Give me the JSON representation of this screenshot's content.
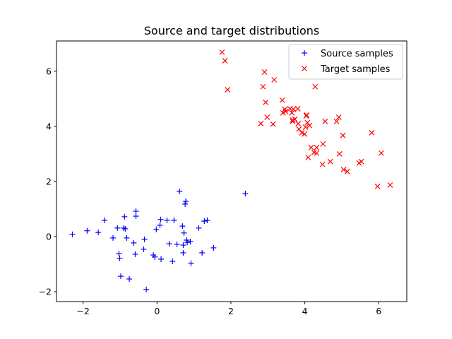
{
  "chart_data": {
    "type": "scatter",
    "title": "Source and target distributions",
    "xlabel": "",
    "ylabel": "",
    "xlim": [
      -2.72,
      6.76
    ],
    "ylim": [
      -2.36,
      7.1
    ],
    "xticks": [
      -2,
      0,
      2,
      4,
      6
    ],
    "yticks": [
      -2,
      0,
      2,
      4,
      6
    ],
    "grid": false,
    "legend_position": "upper right",
    "series": [
      {
        "name": "Source samples",
        "marker": "+",
        "color": "#0000ff",
        "points": [
          [
            -2.29,
            0.08
          ],
          [
            -1.89,
            0.21
          ],
          [
            -1.59,
            0.15
          ],
          [
            -1.42,
            0.59
          ],
          [
            -1.19,
            -0.05
          ],
          [
            -1.07,
            0.31
          ],
          [
            -1.03,
            -0.62
          ],
          [
            -1.01,
            -0.79
          ],
          [
            -0.98,
            -1.44
          ],
          [
            -0.9,
            0.31
          ],
          [
            -0.88,
            0.72
          ],
          [
            -0.86,
            0.28
          ],
          [
            -0.82,
            -0.05
          ],
          [
            -0.75,
            -1.54
          ],
          [
            -0.63,
            -0.23
          ],
          [
            -0.57,
            0.92
          ],
          [
            -0.57,
            0.74
          ],
          [
            -0.59,
            -0.64
          ],
          [
            -0.34,
            -0.1
          ],
          [
            -0.29,
            -1.92
          ],
          [
            -0.36,
            -0.46
          ],
          [
            -0.1,
            -0.67
          ],
          [
            -0.06,
            -0.74
          ],
          [
            -0.02,
            0.26
          ],
          [
            0.08,
            0.41
          ],
          [
            0.1,
            0.62
          ],
          [
            0.11,
            -0.82
          ],
          [
            0.27,
            0.59
          ],
          [
            0.33,
            -0.26
          ],
          [
            0.42,
            -0.9
          ],
          [
            0.46,
            0.59
          ],
          [
            0.54,
            -0.28
          ],
          [
            0.61,
            1.64
          ],
          [
            0.69,
            0.38
          ],
          [
            0.71,
            -0.31
          ],
          [
            0.71,
            -0.59
          ],
          [
            0.73,
            0.13
          ],
          [
            0.76,
            1.18
          ],
          [
            0.78,
            1.28
          ],
          [
            0.8,
            -0.13
          ],
          [
            0.82,
            -0.21
          ],
          [
            0.9,
            -0.18
          ],
          [
            0.92,
            -0.97
          ],
          [
            1.13,
            0.31
          ],
          [
            1.22,
            -0.59
          ],
          [
            1.28,
            0.56
          ],
          [
            1.36,
            0.59
          ],
          [
            1.53,
            -0.41
          ],
          [
            2.39,
            1.56
          ]
        ]
      },
      {
        "name": "Target samples",
        "marker": "x",
        "color": "#ff0000",
        "points": [
          [
            1.76,
            6.69
          ],
          [
            1.84,
            6.38
          ],
          [
            1.91,
            5.33
          ],
          [
            2.91,
            5.97
          ],
          [
            2.87,
            5.44
          ],
          [
            3.17,
            5.69
          ],
          [
            2.94,
            4.87
          ],
          [
            2.98,
            4.33
          ],
          [
            2.81,
            4.1
          ],
          [
            3.14,
            4.08
          ],
          [
            3.39,
            4.95
          ],
          [
            3.46,
            4.62
          ],
          [
            3.41,
            4.49
          ],
          [
            3.48,
            4.54
          ],
          [
            3.69,
            4.62
          ],
          [
            3.6,
            4.64
          ],
          [
            3.81,
            4.64
          ],
          [
            3.67,
            4.18
          ],
          [
            3.73,
            4.26
          ],
          [
            3.65,
            4.49
          ],
          [
            3.82,
            4.1
          ],
          [
            3.84,
            3.9
          ],
          [
            3.92,
            3.77
          ],
          [
            3.99,
            3.72
          ],
          [
            4.05,
            4.41
          ],
          [
            4.02,
            3.97
          ],
          [
            4.07,
            4.13
          ],
          [
            4.13,
            4.03
          ],
          [
            4.04,
            4.38
          ],
          [
            4.28,
            5.44
          ],
          [
            4.32,
            3.23
          ],
          [
            4.17,
            3.23
          ],
          [
            4.09,
            2.87
          ],
          [
            4.25,
            3.05
          ],
          [
            4.32,
            3.03
          ],
          [
            4.55,
            4.18
          ],
          [
            4.49,
            3.36
          ],
          [
            4.48,
            2.62
          ],
          [
            4.69,
            2.72
          ],
          [
            4.86,
            4.18
          ],
          [
            4.92,
            4.33
          ],
          [
            4.94,
            3.0
          ],
          [
            5.03,
            3.67
          ],
          [
            5.05,
            2.43
          ],
          [
            5.15,
            2.36
          ],
          [
            5.47,
            2.67
          ],
          [
            5.53,
            2.72
          ],
          [
            5.81,
            3.77
          ],
          [
            5.97,
            1.82
          ],
          [
            6.07,
            3.03
          ],
          [
            6.31,
            1.87
          ],
          [
            3.67,
            4.23
          ]
        ]
      }
    ]
  }
}
